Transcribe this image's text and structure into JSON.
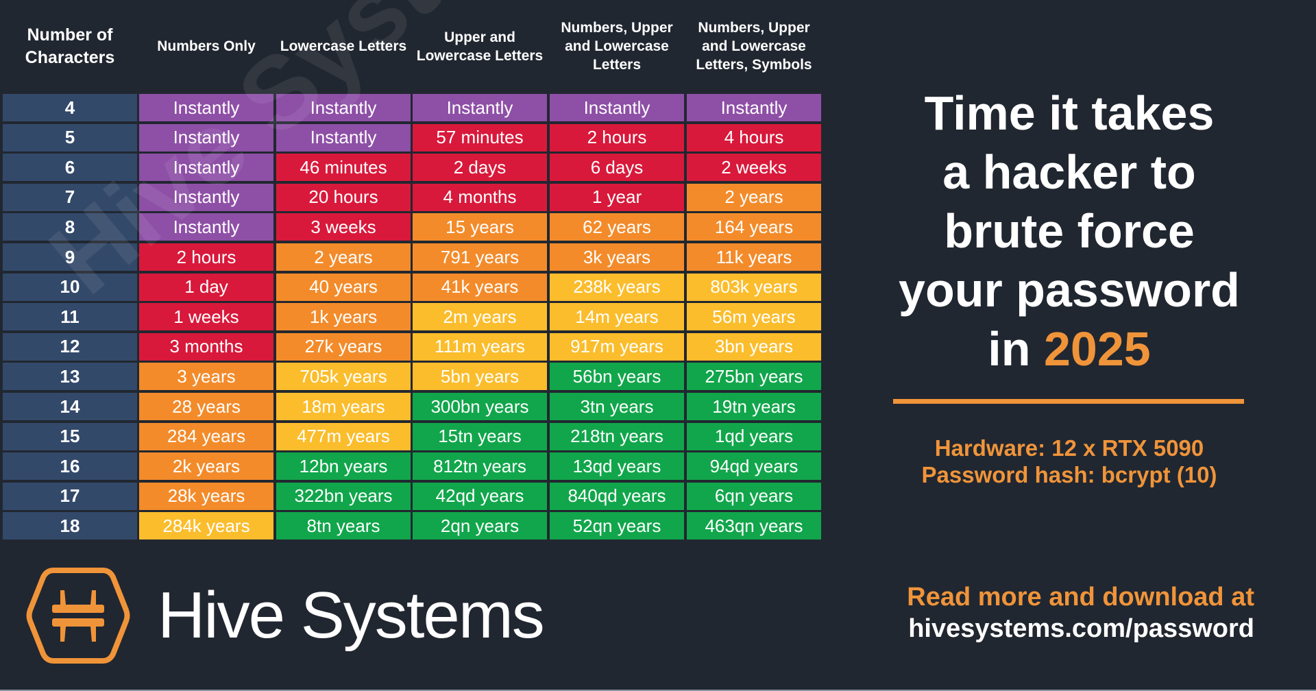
{
  "headers": [
    "Number of Characters",
    "Numbers Only",
    "Lowercase Letters",
    "Upper and Lowercase Letters",
    "Numbers, Upper and Lowercase Letters",
    "Numbers, Upper and Lowercase Letters, Symbols"
  ],
  "colors": {
    "P": "#8e4fa6",
    "R": "#d8193b",
    "O": "#f38b2a",
    "Y": "#fbbd2c",
    "G": "#11a64b",
    "label": "#33496a",
    "accent": "#f0943a",
    "background": "#212730"
  },
  "rows": [
    {
      "n": "4",
      "cells": [
        "Instantly",
        "Instantly",
        "Instantly",
        "Instantly",
        "Instantly"
      ],
      "c": "PPPPP"
    },
    {
      "n": "5",
      "cells": [
        "Instantly",
        "Instantly",
        "57 minutes",
        "2 hours",
        "4 hours"
      ],
      "c": "PPRRR"
    },
    {
      "n": "6",
      "cells": [
        "Instantly",
        "46 minutes",
        "2 days",
        "6 days",
        "2 weeks"
      ],
      "c": "PRRRR"
    },
    {
      "n": "7",
      "cells": [
        "Instantly",
        "20 hours",
        "4 months",
        "1 year",
        "2 years"
      ],
      "c": "PRRRO"
    },
    {
      "n": "8",
      "cells": [
        "Instantly",
        "3 weeks",
        "15 years",
        "62 years",
        "164 years"
      ],
      "c": "PROOO"
    },
    {
      "n": "9",
      "cells": [
        "2 hours",
        "2 years",
        "791 years",
        "3k years",
        "11k years"
      ],
      "c": "ROOOO"
    },
    {
      "n": "10",
      "cells": [
        "1 day",
        "40 years",
        "41k years",
        "238k years",
        "803k years"
      ],
      "c": "ROOYY"
    },
    {
      "n": "11",
      "cells": [
        "1 weeks",
        "1k years",
        "2m years",
        "14m years",
        "56m years"
      ],
      "c": "ROYYY"
    },
    {
      "n": "12",
      "cells": [
        "3 months",
        "27k years",
        "111m years",
        "917m years",
        "3bn years"
      ],
      "c": "ROYYY"
    },
    {
      "n": "13",
      "cells": [
        "3 years",
        "705k years",
        "5bn years",
        "56bn years",
        "275bn years"
      ],
      "c": "OYYGG"
    },
    {
      "n": "14",
      "cells": [
        "28 years",
        "18m years",
        "300bn years",
        "3tn years",
        "19tn years"
      ],
      "c": "OYGGG"
    },
    {
      "n": "15",
      "cells": [
        "284 years",
        "477m years",
        "15tn years",
        "218tn years",
        "1qd years"
      ],
      "c": "OYGGG"
    },
    {
      "n": "16",
      "cells": [
        "2k years",
        "12bn years",
        "812tn years",
        "13qd years",
        "94qd years"
      ],
      "c": "OGGGG"
    },
    {
      "n": "17",
      "cells": [
        "28k years",
        "322bn years",
        "42qd years",
        "840qd years",
        "6qn years"
      ],
      "c": "OGGGG"
    },
    {
      "n": "18",
      "cells": [
        "284k years",
        "8tn years",
        "2qn years",
        "52qn years",
        "463qn years"
      ],
      "c": "YGGGG"
    }
  ],
  "title": {
    "lines": [
      "Time it takes",
      "a hacker to",
      "brute force",
      "your password"
    ],
    "last_prefix": "in ",
    "year": "2025"
  },
  "hardware": "Hardware: 12 x RTX 5090",
  "hash": "Password hash: bcrypt (10)",
  "read_more": "Read more and download at",
  "url": "hivesystems.com/password",
  "brand": "Hive Systems",
  "logo_icon": "hive-hexagon-logo-icon"
}
